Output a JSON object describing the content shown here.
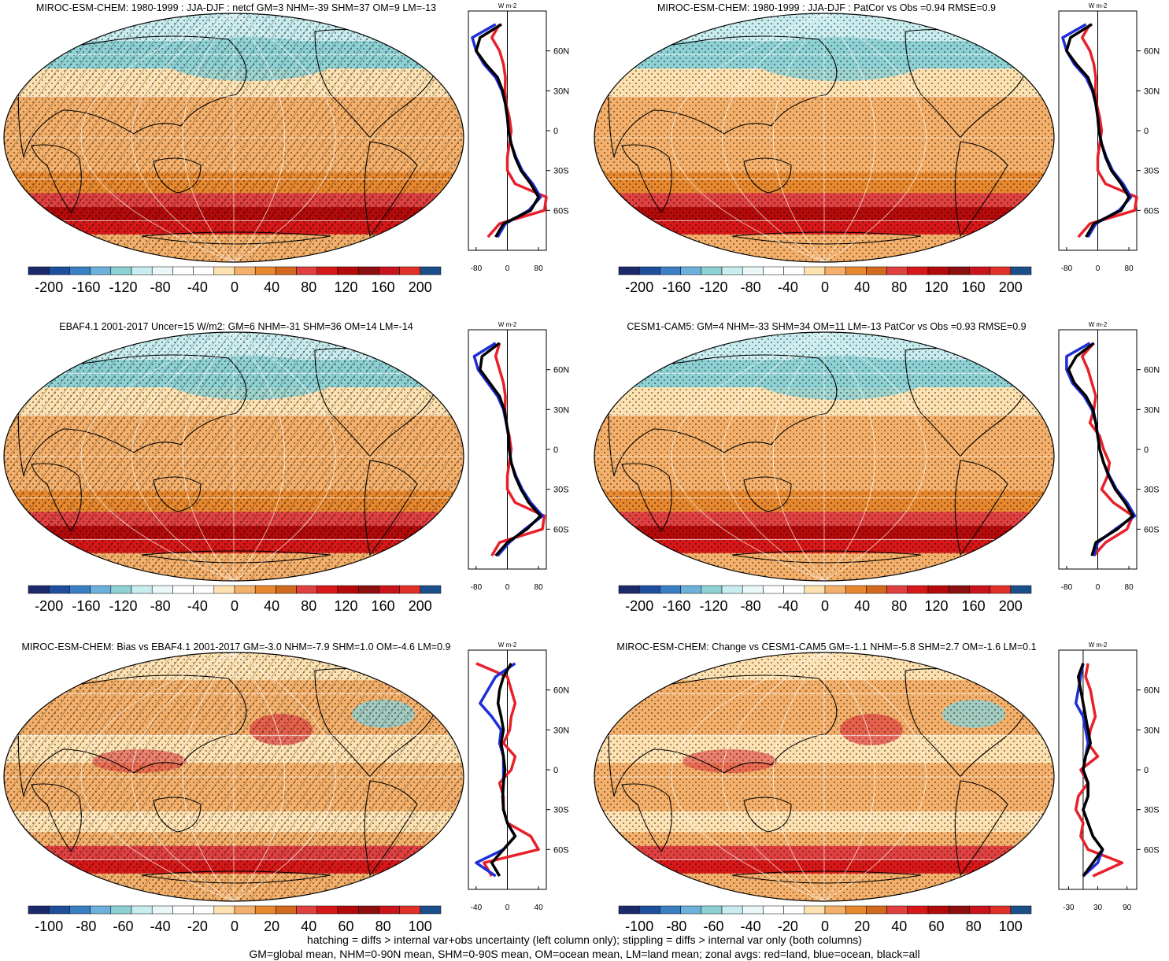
{
  "colors": {
    "diverging": [
      "#1c2a6b",
      "#1e4f9c",
      "#3a7fc4",
      "#6cb1dc",
      "#8ed1d4",
      "#c9ecef",
      "#e9f7f8",
      "#ffffff",
      "#ffffff",
      "#fde1b0",
      "#f4b06a",
      "#e8882e",
      "#d2691e",
      "#e04040",
      "#d81818",
      "#b40a0a",
      "#8e0f0f",
      "#c9141c",
      "#e0302a",
      "#1b4f8a"
    ],
    "land": "#e8202a",
    "ocean": "#1e2ed8",
    "all": "#000000"
  },
  "panels": [
    {
      "title": "MIROC-ESM-CHEM: 1980-1999 : JJA-DJF : netcf GM=3 NHM=-39 SHM=37 OM=9 LM=-13",
      "hatched": true,
      "colorbar_labels": [
        "-200",
        "-160",
        "-120",
        "-80",
        "-40",
        "0",
        "40",
        "80",
        "120",
        "160",
        "200"
      ],
      "zonal_ticks": [
        "-80",
        "0",
        "80"
      ],
      "zonal_unit": "W m-2"
    },
    {
      "title": "MIROC-ESM-CHEM: 1980-1999 : JJA-DJF : PatCor vs Obs =0.94 RMSE=0.9",
      "hatched": false,
      "colorbar_labels": [
        "-200",
        "-160",
        "-120",
        "-80",
        "-40",
        "0",
        "40",
        "80",
        "120",
        "160",
        "200"
      ],
      "zonal_ticks": [
        "-80",
        "0",
        "80"
      ],
      "zonal_unit": "W m-2"
    },
    {
      "title": "EBAF4.1 2001-2017 Uncer=15 W/m2: GM=6 NHM=-31 SHM=36 OM=14 LM=-14",
      "hatched": true,
      "colorbar_labels": [
        "-200",
        "-160",
        "-120",
        "-80",
        "-40",
        "0",
        "40",
        "80",
        "120",
        "160",
        "200"
      ],
      "zonal_ticks": [
        "-80",
        "0",
        "80"
      ],
      "zonal_unit": "W m-2"
    },
    {
      "title": "CESM1-CAM5: GM=4 NHM=-33 SHM=34 OM=11 LM=-13 PatCor vs Obs =0.93 RMSE=0.9",
      "hatched": false,
      "colorbar_labels": [
        "-200",
        "-160",
        "-120",
        "-80",
        "-40",
        "0",
        "40",
        "80",
        "120",
        "160",
        "200"
      ],
      "zonal_ticks": [
        "-80",
        "0",
        "80"
      ],
      "zonal_unit": "W m-2"
    },
    {
      "title": "MIROC-ESM-CHEM: Bias vs EBAF4.1 2001-2017 GM=-3.0 NHM=-7.9 SHM=1.0 OM=-4.6 LM=0.9",
      "hatched": true,
      "colorbar_labels": [
        "-100",
        "-80",
        "-60",
        "-40",
        "-20",
        "0",
        "20",
        "40",
        "60",
        "80",
        "100"
      ],
      "zonal_ticks": [
        "-40",
        "0",
        "40"
      ],
      "zonal_unit": "W m-2"
    },
    {
      "title": "MIROC-ESM-CHEM: Change vs CESM1-CAM5 GM=-1.1 NHM=-5.8 SHM=2.7 OM=-1.6 LM=0.1",
      "hatched": false,
      "colorbar_labels": [
        "-100",
        "-80",
        "-60",
        "-40",
        "-20",
        "0",
        "20",
        "40",
        "60",
        "80",
        "100"
      ],
      "zonal_ticks": [
        "-30",
        "30",
        "90"
      ],
      "zonal_unit": "W m-2"
    }
  ],
  "lat_labels": [
    "60N",
    "30N",
    "0",
    "30S",
    "60S"
  ],
  "footer": {
    "line1": "hatching = diffs > internal var+obs uncertainty (left column only); stippling = diffs > internal var only (both columns)",
    "line2": "GM=global mean, NHM=0-90N mean, SHM=0-90S mean, OM=ocean mean, LM=land mean; zonal avgs: red=land, blue=ocean, black=all"
  },
  "chart_data": [
    {
      "type": "heatmap",
      "title": "MIROC-ESM-CHEM: 1980-1999 : JJA-DJF : netcf GM=3 NHM=-39 SHM=37 OM=9 LM=-13",
      "colorbar": [
        -200,
        -160,
        -120,
        -80,
        -40,
        0,
        40,
        80,
        120,
        160,
        200
      ],
      "zonal_xlim": [
        -100,
        100
      ],
      "zonal": {
        "lat": [
          80,
          70,
          60,
          50,
          40,
          30,
          20,
          10,
          0,
          -10,
          -20,
          -30,
          -40,
          -50,
          -60,
          -70,
          -80
        ],
        "all": [
          -15,
          -70,
          -80,
          -55,
          -25,
          -12,
          -5,
          0,
          3,
          10,
          20,
          35,
          60,
          80,
          60,
          -10,
          -30
        ],
        "ocean": [
          -30,
          -90,
          -80,
          -60,
          -30,
          -14,
          -5,
          0,
          3,
          10,
          22,
          38,
          65,
          85,
          55,
          -5,
          -25
        ],
        "land": [
          -20,
          -40,
          -20,
          -10,
          -5,
          -6,
          -3,
          5,
          10,
          5,
          0,
          0,
          20,
          100,
          95,
          -20,
          -50
        ]
      }
    },
    {
      "type": "heatmap",
      "title": "MIROC-ESM-CHEM: 1980-1999 : JJA-DJF : PatCor vs Obs =0.94 RMSE=0.9",
      "colorbar": [
        -200,
        -160,
        -120,
        -80,
        -40,
        0,
        40,
        80,
        120,
        160,
        200
      ],
      "zonal_xlim": [
        -100,
        100
      ],
      "zonal": {
        "lat": [
          80,
          70,
          60,
          50,
          40,
          30,
          20,
          10,
          0,
          -10,
          -20,
          -30,
          -40,
          -50,
          -60,
          -70,
          -80
        ],
        "all": [
          -15,
          -70,
          -80,
          -55,
          -25,
          -12,
          -5,
          0,
          3,
          10,
          20,
          35,
          60,
          80,
          60,
          -10,
          -30
        ],
        "ocean": [
          -30,
          -90,
          -80,
          -60,
          -30,
          -14,
          -5,
          0,
          3,
          10,
          22,
          38,
          65,
          85,
          55,
          -5,
          -25
        ],
        "land": [
          -20,
          -40,
          -20,
          -10,
          -5,
          -6,
          -3,
          5,
          10,
          5,
          0,
          0,
          20,
          100,
          95,
          -20,
          -50
        ]
      }
    },
    {
      "type": "heatmap",
      "title": "EBAF4.1 2001-2017 Uncer=15 W/m2: GM=6 NHM=-31 SHM=36 OM=14 LM=-14",
      "colorbar": [
        -200,
        -160,
        -120,
        -80,
        -40,
        0,
        40,
        80,
        120,
        160,
        200
      ],
      "zonal_xlim": [
        -100,
        100
      ],
      "zonal": {
        "lat": [
          80,
          70,
          60,
          50,
          40,
          30,
          20,
          10,
          0,
          -10,
          -20,
          -30,
          -40,
          -50,
          -60,
          -70,
          -80
        ],
        "all": [
          -20,
          -65,
          -70,
          -45,
          -20,
          -8,
          -2,
          3,
          5,
          10,
          20,
          35,
          55,
          85,
          50,
          0,
          -30
        ],
        "ocean": [
          -30,
          -85,
          -75,
          -50,
          -25,
          -10,
          -3,
          3,
          5,
          10,
          22,
          38,
          60,
          90,
          45,
          5,
          -25
        ],
        "land": [
          -20,
          -30,
          -20,
          -10,
          -5,
          -6,
          -3,
          5,
          10,
          5,
          0,
          0,
          20,
          95,
          90,
          -20,
          -40
        ]
      }
    },
    {
      "type": "heatmap",
      "title": "CESM1-CAM5: GM=4 NHM=-33 SHM=34 OM=11 LM=-13 PatCor vs Obs =0.93 RMSE=0.9",
      "colorbar": [
        -200,
        -160,
        -120,
        -80,
        -40,
        0,
        40,
        80,
        120,
        160,
        200
      ],
      "zonal_xlim": [
        -100,
        100
      ],
      "zonal": {
        "lat": [
          80,
          70,
          60,
          50,
          40,
          30,
          20,
          10,
          0,
          -10,
          -20,
          -30,
          -40,
          -50,
          -60,
          -70,
          -80
        ],
        "all": [
          -10,
          -55,
          -75,
          -60,
          -30,
          -12,
          -5,
          0,
          5,
          15,
          28,
          45,
          70,
          90,
          50,
          -5,
          -15
        ],
        "ocean": [
          -20,
          -80,
          -80,
          -65,
          -35,
          -15,
          -5,
          0,
          5,
          15,
          30,
          48,
          75,
          95,
          45,
          0,
          -10
        ],
        "land": [
          -10,
          -40,
          -25,
          -15,
          -5,
          -10,
          -20,
          5,
          15,
          30,
          25,
          10,
          40,
          90,
          75,
          20,
          -10
        ]
      }
    },
    {
      "type": "heatmap",
      "title": "MIROC-ESM-CHEM: Bias vs EBAF4.1 2001-2017 GM=-3.0 NHM=-7.9 SHM=1.0 OM=-4.6 LM=0.9",
      "colorbar": [
        -100,
        -80,
        -60,
        -40,
        -20,
        0,
        20,
        40,
        60,
        80,
        100
      ],
      "zonal_xlim": [
        -50,
        50
      ],
      "zonal": {
        "lat": [
          80,
          70,
          60,
          50,
          40,
          30,
          20,
          10,
          0,
          -10,
          -20,
          -30,
          -40,
          -50,
          -60,
          -70,
          -80
        ],
        "all": [
          5,
          -5,
          -10,
          -12,
          -8,
          -5,
          -8,
          -5,
          -3,
          -5,
          -6,
          -5,
          0,
          10,
          -5,
          -20,
          -10
        ],
        "ocean": [
          10,
          -15,
          -25,
          -35,
          -20,
          -8,
          -10,
          -5,
          -5,
          -5,
          -6,
          -5,
          0,
          10,
          -5,
          -40,
          -15
        ],
        "land": [
          -40,
          0,
          5,
          10,
          5,
          3,
          -5,
          10,
          5,
          -10,
          -5,
          -5,
          0,
          30,
          40,
          -30,
          -20
        ]
      }
    },
    {
      "type": "heatmap",
      "title": "MIROC-ESM-CHEM: Change vs CESM1-CAM5 GM=-1.1 NHM=-5.8 SHM=2.7 OM=-1.6 LM=0.1",
      "colorbar": [
        -100,
        -80,
        -60,
        -40,
        -20,
        0,
        20,
        40,
        60,
        80,
        100
      ],
      "zonal_xlim": [
        -50,
        110
      ],
      "zonal": {
        "lat": [
          80,
          70,
          60,
          50,
          40,
          30,
          20,
          10,
          0,
          -10,
          -20,
          -30,
          -40,
          -50,
          -60,
          -70,
          -80
        ],
        "all": [
          0,
          -10,
          -5,
          0,
          5,
          10,
          15,
          5,
          0,
          10,
          10,
          0,
          10,
          20,
          40,
          20,
          0
        ],
        "ocean": [
          0,
          -5,
          -10,
          -15,
          0,
          5,
          10,
          5,
          0,
          10,
          10,
          0,
          10,
          20,
          40,
          30,
          0
        ],
        "land": [
          10,
          5,
          15,
          20,
          25,
          15,
          10,
          30,
          -5,
          10,
          -10,
          -15,
          0,
          -5,
          10,
          80,
          20
        ]
      }
    }
  ]
}
